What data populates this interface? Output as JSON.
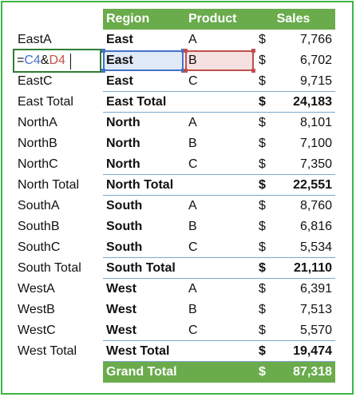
{
  "headers": {
    "region": "Region",
    "product": "Product",
    "sales": "Sales"
  },
  "formula": {
    "prefix": "=",
    "ref1": "C4",
    "op": "&",
    "ref2": "D4"
  },
  "colors": {
    "header_bg": "#6aab4c",
    "frame": "#3bb54a",
    "ref1": "#4472c4",
    "ref2": "#c0504d"
  },
  "rows": [
    {
      "key": "EastA",
      "region": "East",
      "product": "A",
      "currency": "$",
      "sales": "7,766"
    },
    {
      "key": "",
      "region": "East",
      "product": "B",
      "currency": "$",
      "sales": "6,702"
    },
    {
      "key": "EastC",
      "region": "East",
      "product": "C",
      "currency": "$",
      "sales": "9,715"
    },
    {
      "key": "East Total",
      "region": "East Total",
      "product": "",
      "currency": "$",
      "sales": "24,183"
    },
    {
      "key": "NorthA",
      "region": "North",
      "product": "A",
      "currency": "$",
      "sales": "8,101"
    },
    {
      "key": "NorthB",
      "region": "North",
      "product": "B",
      "currency": "$",
      "sales": "7,100"
    },
    {
      "key": "NorthC",
      "region": "North",
      "product": "C",
      "currency": "$",
      "sales": "7,350"
    },
    {
      "key": "North Total",
      "region": "North Total",
      "product": "",
      "currency": "$",
      "sales": "22,551"
    },
    {
      "key": "SouthA",
      "region": "South",
      "product": "A",
      "currency": "$",
      "sales": "8,760"
    },
    {
      "key": "SouthB",
      "region": "South",
      "product": "B",
      "currency": "$",
      "sales": "6,816"
    },
    {
      "key": "SouthC",
      "region": "South",
      "product": "C",
      "currency": "$",
      "sales": "5,534"
    },
    {
      "key": "South Total",
      "region": "South Total",
      "product": "",
      "currency": "$",
      "sales": "21,110"
    },
    {
      "key": "WestA",
      "region": "West",
      "product": "A",
      "currency": "$",
      "sales": "6,391"
    },
    {
      "key": "WestB",
      "region": "West",
      "product": "B",
      "currency": "$",
      "sales": "7,513"
    },
    {
      "key": "WestC",
      "region": "West",
      "product": "C",
      "currency": "$",
      "sales": "5,570"
    },
    {
      "key": "West Total",
      "region": "West Total",
      "product": "",
      "currency": "$",
      "sales": "19,474"
    }
  ],
  "grand_total": {
    "label": "Grand Total",
    "currency": "$",
    "sales": "87,318"
  }
}
